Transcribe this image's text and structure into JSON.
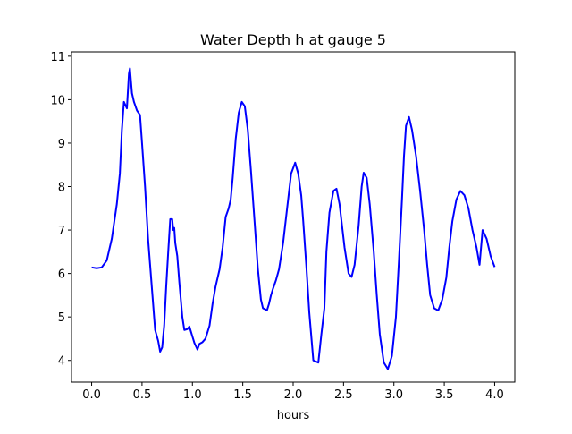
{
  "chart_data": {
    "type": "line",
    "title": "Water Depth h at gauge 5",
    "xlabel": "hours",
    "ylabel": "",
    "xlim": [
      -0.2,
      4.2
    ],
    "ylim": [
      3.5,
      11.1
    ],
    "xticks": [
      0.0,
      0.5,
      1.0,
      1.5,
      2.0,
      2.5,
      3.0,
      3.5,
      4.0
    ],
    "xtick_labels": [
      "0.0",
      "0.5",
      "1.0",
      "1.5",
      "2.0",
      "2.5",
      "3.0",
      "3.5",
      "4.0"
    ],
    "yticks": [
      4,
      5,
      6,
      7,
      8,
      9,
      10,
      11
    ],
    "ytick_labels": [
      "4",
      "5",
      "6",
      "7",
      "8",
      "9",
      "10",
      "11"
    ],
    "grid": false,
    "series": [
      {
        "color": "#0000ff",
        "x": [
          0.0,
          0.05,
          0.1,
          0.15,
          0.2,
          0.25,
          0.28,
          0.3,
          0.32,
          0.33,
          0.35,
          0.37,
          0.38,
          0.4,
          0.42,
          0.45,
          0.48,
          0.5,
          0.53,
          0.56,
          0.6,
          0.63,
          0.66,
          0.68,
          0.7,
          0.72,
          0.74,
          0.76,
          0.78,
          0.8,
          0.81,
          0.82,
          0.83,
          0.85,
          0.87,
          0.9,
          0.92,
          0.95,
          0.97,
          1.0,
          1.02,
          1.05,
          1.07,
          1.1,
          1.13,
          1.17,
          1.2,
          1.23,
          1.27,
          1.3,
          1.33,
          1.36,
          1.38,
          1.4,
          1.43,
          1.46,
          1.49,
          1.52,
          1.55,
          1.58,
          1.62,
          1.65,
          1.68,
          1.7,
          1.72,
          1.74,
          1.76,
          1.78,
          1.8,
          1.83,
          1.86,
          1.9,
          1.94,
          1.98,
          2.02,
          2.05,
          2.08,
          2.1,
          2.13,
          2.16,
          2.2,
          2.25,
          2.28,
          2.31,
          2.33,
          2.36,
          2.4,
          2.43,
          2.46,
          2.49,
          2.51,
          2.53,
          2.55,
          2.58,
          2.61,
          2.65,
          2.68,
          2.7,
          2.73,
          2.76,
          2.8,
          2.83,
          2.86,
          2.9,
          2.94,
          2.98,
          3.02,
          3.05,
          3.08,
          3.1,
          3.12,
          3.15,
          3.18,
          3.22,
          3.26,
          3.3,
          3.33,
          3.36,
          3.4,
          3.44,
          3.48,
          3.52,
          3.55,
          3.58,
          3.62,
          3.66,
          3.7,
          3.74,
          3.78,
          3.82,
          3.85,
          3.88,
          3.92,
          3.96,
          4.0
        ],
        "y": [
          6.14,
          6.12,
          6.14,
          6.3,
          6.8,
          7.6,
          8.3,
          9.3,
          9.95,
          9.9,
          9.8,
          10.6,
          10.72,
          10.15,
          9.95,
          9.75,
          9.65,
          9.0,
          8.0,
          6.8,
          5.6,
          4.7,
          4.45,
          4.2,
          4.3,
          4.8,
          5.7,
          6.5,
          7.25,
          7.25,
          7.0,
          7.05,
          6.7,
          6.4,
          5.8,
          5.0,
          4.7,
          4.72,
          4.78,
          4.55,
          4.4,
          4.25,
          4.38,
          4.42,
          4.5,
          4.8,
          5.3,
          5.7,
          6.1,
          6.6,
          7.3,
          7.5,
          7.7,
          8.2,
          9.1,
          9.7,
          9.95,
          9.85,
          9.3,
          8.4,
          7.1,
          6.1,
          5.4,
          5.2,
          5.18,
          5.15,
          5.3,
          5.5,
          5.65,
          5.85,
          6.1,
          6.7,
          7.5,
          8.3,
          8.55,
          8.3,
          7.8,
          7.2,
          6.2,
          5.1,
          4.0,
          3.95,
          4.6,
          5.2,
          6.5,
          7.4,
          7.9,
          7.95,
          7.6,
          7.0,
          6.6,
          6.3,
          6.0,
          5.92,
          6.2,
          7.1,
          8.0,
          8.32,
          8.2,
          7.6,
          6.5,
          5.5,
          4.6,
          3.95,
          3.8,
          4.1,
          5.0,
          6.3,
          7.7,
          8.7,
          9.4,
          9.6,
          9.3,
          8.7,
          7.9,
          7.0,
          6.2,
          5.5,
          5.2,
          5.15,
          5.4,
          5.9,
          6.6,
          7.2,
          7.7,
          7.9,
          7.8,
          7.5,
          7.0,
          6.6,
          6.2,
          7.0,
          6.8,
          6.4,
          6.15
        ]
      }
    ]
  }
}
